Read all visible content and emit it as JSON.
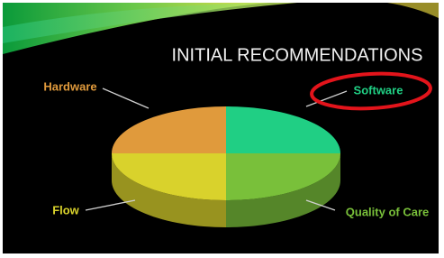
{
  "chart_data": {
    "type": "pie",
    "title": "INITIAL RECOMMENDATIONS",
    "categories": [
      "Software",
      "Quality of Care",
      "Flow",
      "Hardware"
    ],
    "values": [
      25,
      25,
      25,
      25
    ],
    "colors": [
      "#20cf84",
      "#79c03a",
      "#d9d22c",
      "#e09a3c"
    ]
  }
}
